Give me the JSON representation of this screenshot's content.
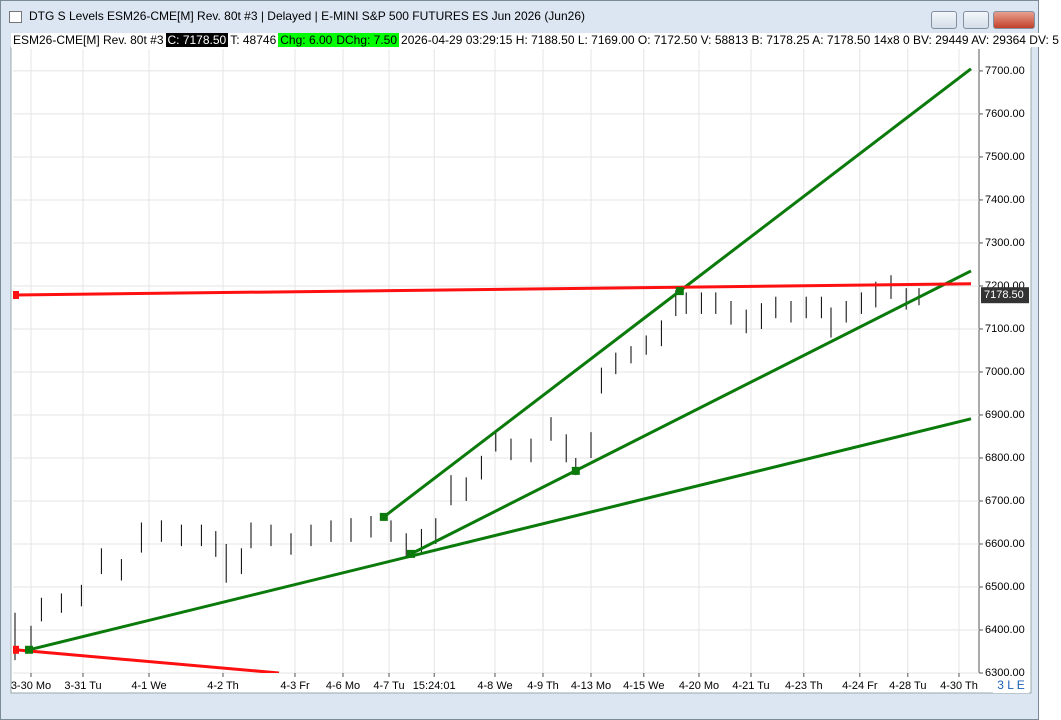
{
  "window": {
    "title": "DTG S Levels ESM26-CME[M]  Rev. 80t #3 | Delayed | E-MINI S&P 500 FUTURES ES Jun 2026 (Jun26)",
    "info": [
      {
        "text": "ESM26-CME[M]  Rev. 80t #3",
        "bg": "#ffffff",
        "fg": "#000000"
      },
      {
        "text": "C: 7178.50",
        "bg": "#000000",
        "fg": "#ffffff"
      },
      {
        "text": "T: 48746",
        "bg": "#ffffff",
        "fg": "#000000"
      },
      {
        "text": "Chg: 6.00",
        "bg": "#00ff00",
        "fg": "#000000"
      },
      {
        "text": "DChg: 7.50",
        "bg": "#00ff00",
        "fg": "#000000"
      },
      {
        "text": "2026-04-29 03:29:15 H: 7188.50  L: 7169.00  O: 7172.50  V: 58813  B: 7178.25  A: 7178.50  14x8  0  BV: 29449  AV: 29364  DV: 5",
        "bg": "#ffffff",
        "fg": "#000000"
      }
    ],
    "corner_label": "3 L E"
  },
  "chart_data": {
    "type": "range",
    "x": [
      0,
      2,
      3.3,
      5.8,
      8.3,
      10.8,
      13.3,
      15.8,
      18.3,
      20.8,
      23.3,
      25.1,
      26.4,
      28.3,
      29.5,
      32,
      34.5,
      37,
      39.5,
      42,
      44.5,
      47,
      48.9,
      50.8,
      52.6,
      54.5,
      56.4,
      58.3,
      60.1,
      62,
      64.5,
      67,
      68.9,
      70.1,
      72,
      73.3,
      75.1,
      77,
      78.9,
      80.8,
      82.6,
      83.9,
      85.8,
      87.6,
      89.5,
      91.4,
      93.3,
      95.1,
      97,
      98.9,
      100.8,
      102,
      103.9,
      105.8,
      107.6,
      109.5,
      111.4,
      113
    ],
    "high": [
      6440,
      6410,
      6475,
      6485,
      6505,
      6590,
      6565,
      6650,
      6655,
      6645,
      6645,
      6630,
      6600,
      6590,
      6650,
      6645,
      6625,
      6645,
      6655,
      6660,
      6665,
      6655,
      6625,
      6635,
      6660,
      6760,
      6755,
      6805,
      6865,
      6845,
      6845,
      6895,
      6855,
      6800,
      6860,
      7010,
      7045,
      7060,
      7085,
      7120,
      7190,
      7185,
      7185,
      7185,
      7165,
      7145,
      7160,
      7175,
      7165,
      7175,
      7175,
      7150,
      7165,
      7185,
      7210,
      7225,
      7195,
      7195
    ],
    "low": [
      6330,
      6350,
      6420,
      6440,
      6455,
      6530,
      6515,
      6580,
      6605,
      6595,
      6595,
      6570,
      6510,
      6530,
      6590,
      6595,
      6575,
      6595,
      6605,
      6605,
      6615,
      6605,
      6570,
      6580,
      6600,
      6690,
      6700,
      6750,
      6815,
      6795,
      6790,
      6840,
      6790,
      6760,
      6800,
      6950,
      6995,
      7020,
      7040,
      7060,
      7130,
      7135,
      7135,
      7135,
      7110,
      7090,
      7100,
      7125,
      7115,
      7125,
      7125,
      7080,
      7115,
      7135,
      7150,
      7170,
      7145,
      7155
    ],
    "color": "#000000",
    "lines": [
      {
        "color": "#0a7a0a",
        "x": [
          1.75,
          119.5
        ],
        "y": [
          6354,
          6891
        ]
      },
      {
        "color": "#0a7a0a",
        "x": [
          49.5,
          119.5
        ],
        "y": [
          6577,
          7235
        ]
      },
      {
        "color": "#0a7a0a",
        "x": [
          46.1,
          119.5
        ],
        "y": [
          6663,
          7705
        ]
      },
      {
        "color": "#ff1010",
        "x": [
          0,
          119.5
        ],
        "y": [
          7179,
          7205
        ]
      },
      {
        "color": "#ff1010",
        "x": [
          0,
          33
        ],
        "y": [
          6354,
          6300
        ]
      }
    ],
    "markers": [
      {
        "color": "#0a7a0a",
        "x": 1.75,
        "y": 6354
      },
      {
        "color": "#0a7a0a",
        "x": 49.5,
        "y": 6577
      },
      {
        "color": "#0a7a0a",
        "x": 46.1,
        "y": 6663
      },
      {
        "color": "#0a7a0a",
        "x": 70.1,
        "y": 6770
      },
      {
        "color": "#0a7a0a",
        "x": 83.1,
        "y": 7188
      },
      {
        "color": "#ff1010",
        "x": 0,
        "y": 7179
      },
      {
        "color": "#ff1010",
        "x": 0,
        "y": 6354
      }
    ],
    "price_label": {
      "value": 7178.5,
      "label": "7178.50"
    },
    "xlim": [
      -0.25,
      120.5
    ],
    "ylim": [
      6300,
      7751
    ],
    "yticks": [
      {
        "value": 6300,
        "label": "6300.00"
      },
      {
        "value": 6400,
        "label": "6400.00"
      },
      {
        "value": 6500,
        "label": "6500.00"
      },
      {
        "value": 6600,
        "label": "6600.00"
      },
      {
        "value": 6700,
        "label": "6700.00"
      },
      {
        "value": 6800,
        "label": "6800.00"
      },
      {
        "value": 6900,
        "label": "6900.00"
      },
      {
        "value": 7000,
        "label": "7000.00"
      },
      {
        "value": 7100,
        "label": "7100.00"
      },
      {
        "value": 7200,
        "label": "7200.00"
      },
      {
        "value": 7300,
        "label": "7300.00"
      },
      {
        "value": 7400,
        "label": "7400.00"
      },
      {
        "value": 7500,
        "label": "7500.00"
      },
      {
        "value": 7600,
        "label": "7600.00"
      },
      {
        "value": 7700,
        "label": "7700.00"
      }
    ],
    "xticks": [
      {
        "value": 2,
        "label": "3-30 Mo"
      },
      {
        "value": 8.5,
        "label": "3-31 Tu"
      },
      {
        "value": 16.75,
        "label": "4-1 We"
      },
      {
        "value": 26,
        "label": "4-2 Th"
      },
      {
        "value": 35,
        "label": "4-3 Fr"
      },
      {
        "value": 41,
        "label": "4-6 Mo"
      },
      {
        "value": 46.75,
        "label": "4-7 Tu"
      },
      {
        "value": 52.4,
        "label": "15:24:01"
      },
      {
        "value": 60,
        "label": "4-8 We"
      },
      {
        "value": 66,
        "label": "4-9 Th"
      },
      {
        "value": 72,
        "label": "4-13 Mo"
      },
      {
        "value": 78.6,
        "label": "4-15 We"
      },
      {
        "value": 85.5,
        "label": "4-20 Mo"
      },
      {
        "value": 92,
        "label": "4-21 Tu"
      },
      {
        "value": 98.6,
        "label": "4-23 Th"
      },
      {
        "value": 105.6,
        "label": "4-24 Fr"
      },
      {
        "value": 111.6,
        "label": "4-28 Tu"
      },
      {
        "value": 118,
        "label": "4-30 Th"
      }
    ],
    "grid": true
  }
}
